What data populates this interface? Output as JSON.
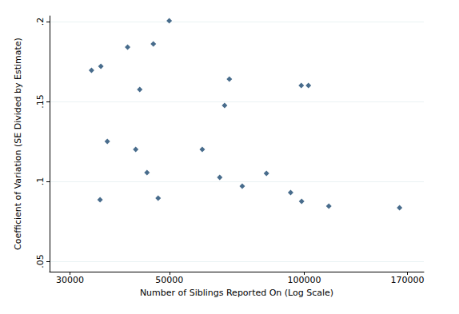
{
  "chart_data": {
    "type": "scatter",
    "x_label": "Number of Siblings Reported On (Log Scale)",
    "y_label": "Coefficient of Variation (SE Divided by Estimate)",
    "x": [
      33500,
      35150,
      35000,
      36330,
      40330,
      42040,
      42930,
      44560,
      46030,
      47190,
      49960,
      59200,
      64770,
      66410,
      68060,
      72720,
      82360,
      93260,
      98500,
      98700,
      102200,
      113500,
      163300
    ],
    "values": [
      0.1695,
      0.172,
      0.0885,
      0.125,
      0.184,
      0.12,
      0.1575,
      0.1055,
      0.186,
      0.0895,
      0.2005,
      0.12,
      0.1025,
      0.1475,
      0.164,
      0.097,
      0.105,
      0.093,
      0.16,
      0.0875,
      0.16,
      0.0845,
      0.0835
    ],
    "color": "#1a476f",
    "marker": "diamond",
    "log": "x",
    "grid": true,
    "xlim": [
      27000,
      185000
    ],
    "xticks": [
      30000,
      50000,
      100000,
      170000
    ],
    "ylim": [
      0.0435,
      0.2035
    ],
    "yticks": [
      {
        "value": 0.05,
        "label": ".05"
      },
      {
        "value": 0.1,
        "label": ".1"
      },
      {
        "value": 0.15,
        "label": ".15"
      },
      {
        "value": 0.2,
        "label": ".2"
      }
    ]
  }
}
